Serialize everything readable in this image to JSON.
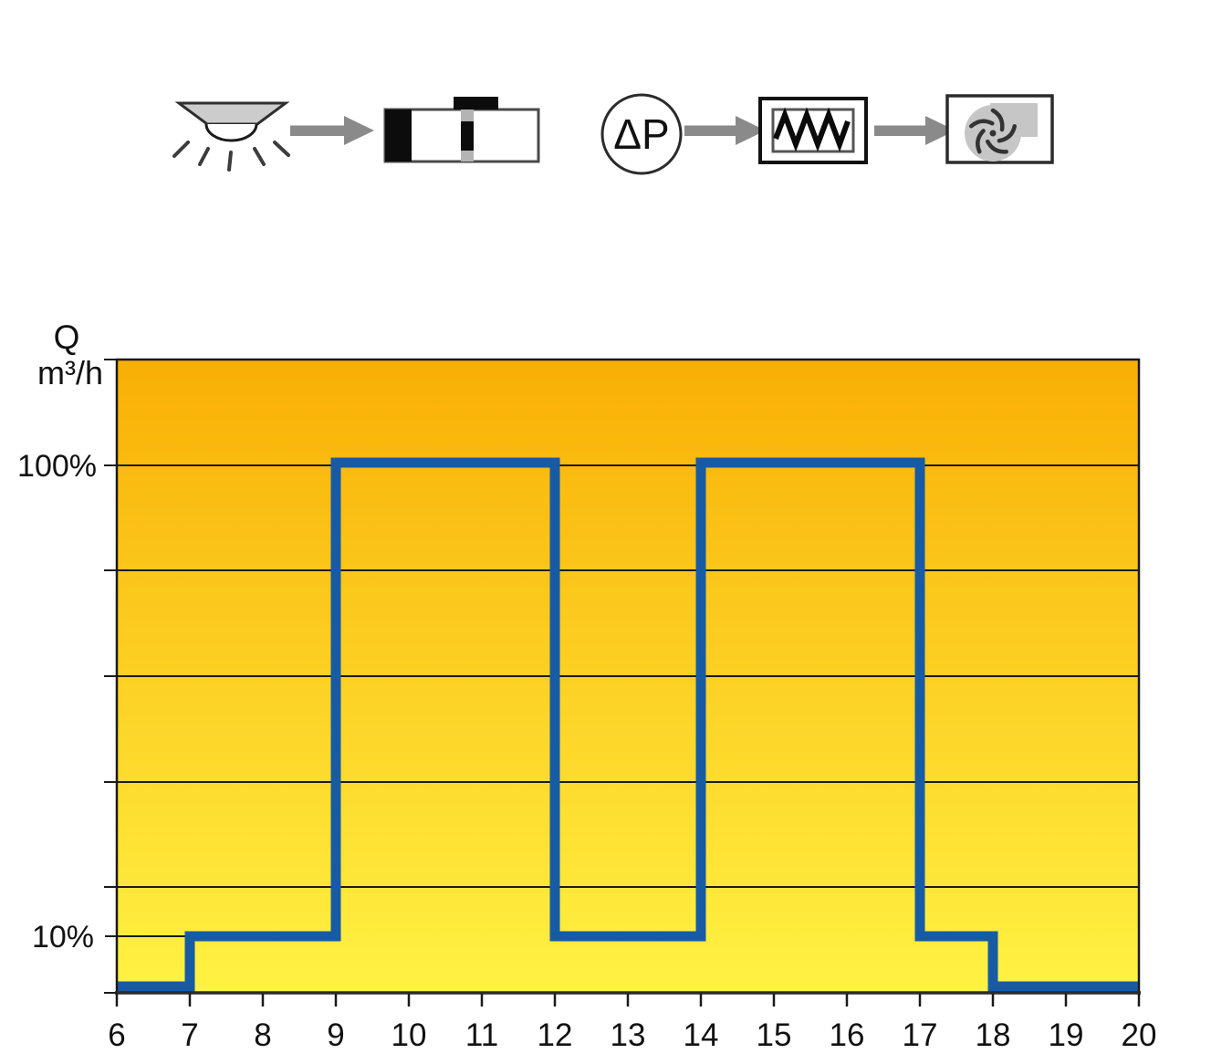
{
  "flow_diagram": {
    "left_chain": [
      "ceiling-light",
      "arrow",
      "duct-damper"
    ],
    "right_chain": [
      "delta-p-sensor",
      "arrow",
      "heater-controller",
      "arrow",
      "fan"
    ],
    "delta_p_label": "ΔP"
  },
  "chart_data": {
    "type": "step-line",
    "title": "",
    "ylabel_line1": "Q",
    "ylabel_line2": "m³/h",
    "y_axis_labels": {
      "high": "100%",
      "low": "10%"
    },
    "x_range": [
      6,
      20
    ],
    "x_tick_labels": [
      "6",
      "7",
      "8",
      "9",
      "10",
      "11",
      "12",
      "13",
      "14",
      "15",
      "16",
      "17",
      "18",
      "19",
      "20"
    ],
    "grid": true,
    "n_grid_bands": 6,
    "legend": "none",
    "background_gradient": {
      "top": "#F9AF05",
      "bottom": "#FFF243"
    },
    "series": [
      {
        "name": "airflow-rate-schedule",
        "color": "#175BA5",
        "unit": "percent-of-max-airflow",
        "steps": [
          {
            "from": 6,
            "to": 7,
            "percent": 0
          },
          {
            "from": 7,
            "to": 9,
            "percent": 10
          },
          {
            "from": 9,
            "to": 12,
            "percent": 100
          },
          {
            "from": 12,
            "to": 14,
            "percent": 10
          },
          {
            "from": 14,
            "to": 17,
            "percent": 100
          },
          {
            "from": 17,
            "to": 18,
            "percent": 10
          },
          {
            "from": 18,
            "to": 20,
            "percent": 0
          }
        ]
      }
    ]
  },
  "colors": {
    "accent_blue": "#175BA5",
    "arrow_gray": "#8A8A8A",
    "grid_black": "#1A1A1A"
  }
}
